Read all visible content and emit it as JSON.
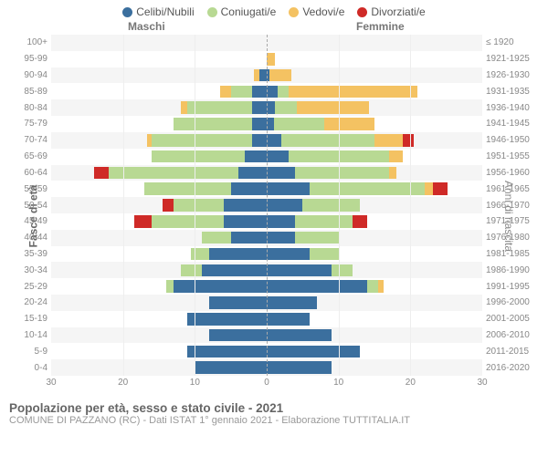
{
  "legend": [
    {
      "label": "Celibi/Nubili",
      "color": "#3b6f9e"
    },
    {
      "label": "Coniugati/e",
      "color": "#b8d993"
    },
    {
      "label": "Vedovi/e",
      "color": "#f4c262"
    },
    {
      "label": "Divorziati/e",
      "color": "#cf2a27"
    }
  ],
  "subheader": {
    "maschi": "Maschi",
    "femmine": "Femmine"
  },
  "axis": {
    "left_title": "Fasce di età",
    "right_title": "Anni di nascita",
    "xmax": 30,
    "xticks": [
      30,
      20,
      10,
      0,
      10,
      20,
      30
    ]
  },
  "grid": {
    "row_alt_bg": "#f5f5f5",
    "row_bg": "#ffffff",
    "gridline_color": "#eeeeee",
    "center_dash_color": "#aaaaaa"
  },
  "rows": [
    {
      "age": "100+",
      "birth": "≤ 1920",
      "m": [
        0,
        0,
        0,
        0
      ],
      "f": [
        0,
        0,
        0,
        0
      ]
    },
    {
      "age": "95-99",
      "birth": "1921-1925",
      "m": [
        0,
        0,
        0,
        0
      ],
      "f": [
        0,
        0,
        1.2,
        0
      ]
    },
    {
      "age": "90-94",
      "birth": "1926-1930",
      "m": [
        1,
        0,
        0.8,
        0
      ],
      "f": [
        0.4,
        0,
        3,
        0
      ]
    },
    {
      "age": "85-89",
      "birth": "1931-1935",
      "m": [
        2,
        3,
        1.5,
        0
      ],
      "f": [
        1.5,
        1.5,
        18,
        0
      ]
    },
    {
      "age": "80-84",
      "birth": "1936-1940",
      "m": [
        2,
        9,
        1,
        0
      ],
      "f": [
        1.2,
        3,
        10,
        0
      ]
    },
    {
      "age": "75-79",
      "birth": "1941-1945",
      "m": [
        2,
        11,
        0,
        0
      ],
      "f": [
        1,
        7,
        7,
        0
      ]
    },
    {
      "age": "70-74",
      "birth": "1946-1950",
      "m": [
        2,
        14,
        0.7,
        0
      ],
      "f": [
        2,
        13,
        4,
        1.5
      ]
    },
    {
      "age": "65-69",
      "birth": "1951-1955",
      "m": [
        3,
        13,
        0,
        0
      ],
      "f": [
        3,
        14,
        2,
        0
      ]
    },
    {
      "age": "60-64",
      "birth": "1956-1960",
      "m": [
        4,
        18,
        0,
        2
      ],
      "f": [
        4,
        13,
        1,
        0
      ]
    },
    {
      "age": "55-59",
      "birth": "1961-1965",
      "m": [
        5,
        12,
        0,
        0
      ],
      "f": [
        6,
        16,
        1.2,
        2
      ]
    },
    {
      "age": "50-54",
      "birth": "1966-1970",
      "m": [
        6,
        7,
        0,
        1.5
      ],
      "f": [
        5,
        8,
        0,
        0
      ]
    },
    {
      "age": "45-49",
      "birth": "1971-1975",
      "m": [
        6,
        10,
        0,
        2.5
      ],
      "f": [
        4,
        8,
        0,
        2
      ]
    },
    {
      "age": "40-44",
      "birth": "1976-1980",
      "m": [
        5,
        4,
        0,
        0
      ],
      "f": [
        4,
        6,
        0,
        0
      ]
    },
    {
      "age": "35-39",
      "birth": "1981-1985",
      "m": [
        8,
        2.5,
        0,
        0
      ],
      "f": [
        6,
        4,
        0,
        0
      ]
    },
    {
      "age": "30-34",
      "birth": "1986-1990",
      "m": [
        9,
        3,
        0,
        0
      ],
      "f": [
        9,
        3,
        0,
        0
      ]
    },
    {
      "age": "25-29",
      "birth": "1991-1995",
      "m": [
        13,
        1,
        0,
        0
      ],
      "f": [
        14,
        1.5,
        0.8,
        0
      ]
    },
    {
      "age": "20-24",
      "birth": "1996-2000",
      "m": [
        8,
        0,
        0,
        0
      ],
      "f": [
        7,
        0,
        0,
        0
      ]
    },
    {
      "age": "15-19",
      "birth": "2001-2005",
      "m": [
        11,
        0,
        0,
        0
      ],
      "f": [
        6,
        0,
        0,
        0
      ]
    },
    {
      "age": "10-14",
      "birth": "2006-2010",
      "m": [
        8,
        0,
        0,
        0
      ],
      "f": [
        9,
        0,
        0,
        0
      ]
    },
    {
      "age": "5-9",
      "birth": "2011-2015",
      "m": [
        11,
        0,
        0,
        0
      ],
      "f": [
        13,
        0,
        0,
        0
      ]
    },
    {
      "age": "0-4",
      "birth": "2016-2020",
      "m": [
        10,
        0,
        0,
        0
      ],
      "f": [
        9,
        0,
        0,
        0
      ]
    }
  ],
  "footer": {
    "title": "Popolazione per età, sesso e stato civile - 2021",
    "sub": "COMUNE DI PAZZANO (RC) - Dati ISTAT 1° gennaio 2021 - Elaborazione TUTTITALIA.IT"
  }
}
